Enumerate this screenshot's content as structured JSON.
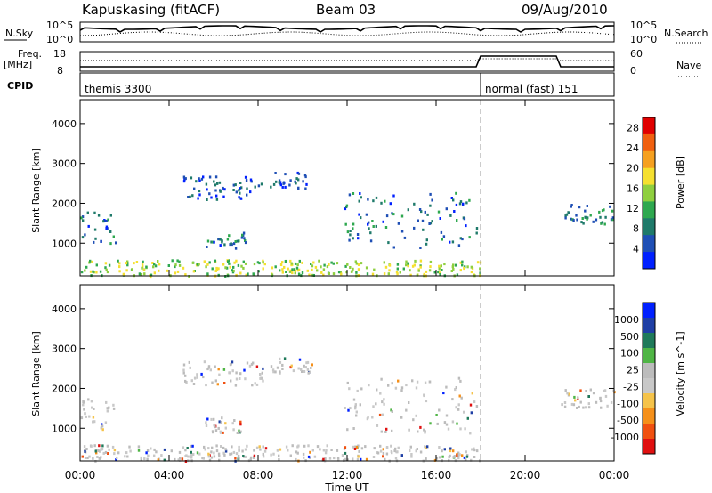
{
  "header": {
    "station": "Kapuskasing (fitACF)",
    "beam": "Beam 03",
    "date": "09/Aug/2010"
  },
  "top_panels": {
    "nsky_label": "N.Sky",
    "nsky_ticks": [
      "10^5",
      "10^0"
    ],
    "nsearch_label": "N.Search",
    "nsearch_ticks": [
      "10^5",
      "10^0"
    ],
    "freq_label": "Freq.",
    "freq_unit": "[MHz]",
    "freq_ticks": [
      "18",
      "8"
    ],
    "nave_label": "Nave",
    "nave_ticks": [
      "60",
      "0"
    ],
    "cpid_label": "CPID",
    "cpid_modes": [
      {
        "name": "themis 3300",
        "start_hour": 0,
        "end_hour": 18
      },
      {
        "name": "normal (fast) 151",
        "start_hour": 18,
        "end_hour": 24
      }
    ]
  },
  "colors": {
    "power_scale": [
      "#0020ff",
      "#1f4fb5",
      "#1f7a6a",
      "#2ea84f",
      "#8fcf3f",
      "#f5e030",
      "#f5a020",
      "#f06010",
      "#e00000"
    ],
    "velocity_scale": [
      "#e01010",
      "#f05010",
      "#f5901a",
      "#f5c34a",
      "#c8c8c8",
      "#bcbcbc",
      "#4fb545",
      "#1f7a5a",
      "#1f3fa5",
      "#0020ff"
    ],
    "ground_scatter": "#bdbdbd",
    "dashed_marker": "#999999"
  },
  "chart_data": [
    {
      "type": "heatmap",
      "title": "",
      "xlabel": "Time UT",
      "ylabel": "Slant Range [km]",
      "xlim_hours": [
        0,
        24
      ],
      "ylim_km": [
        180,
        4600
      ],
      "x_ticks": [
        "00:00",
        "04:00",
        "08:00",
        "12:00",
        "16:00",
        "20:00",
        "00:00"
      ],
      "y_ticks": [
        "1000",
        "2000",
        "3000",
        "4000"
      ],
      "colorbar_label": "Power [dB]",
      "colorbar_ticks": [
        "4",
        "8",
        "12",
        "16",
        "20",
        "24",
        "28"
      ],
      "colorbar_range": [
        0,
        30
      ],
      "mode_change_hour": 18,
      "features": [
        {
          "t0": 0.0,
          "t1": 1.6,
          "r0": 1000,
          "r1": 1800,
          "value": 8
        },
        {
          "t0": 4.6,
          "t1": 8.2,
          "r0": 2100,
          "r1": 2700,
          "value": 6
        },
        {
          "t0": 8.5,
          "t1": 10.4,
          "r0": 2400,
          "r1": 2800,
          "value": 6
        },
        {
          "t0": 5.6,
          "t1": 7.4,
          "r0": 900,
          "r1": 1300,
          "value": 8
        },
        {
          "t0": 11.8,
          "t1": 17.8,
          "r0": 900,
          "r1": 2300,
          "value": 8
        },
        {
          "t0": 21.6,
          "t1": 24.0,
          "r0": 1500,
          "r1": 2000,
          "value": 10
        },
        {
          "t0": 0.0,
          "t1": 18.0,
          "r0": 200,
          "r1": 600,
          "value": 18
        }
      ]
    },
    {
      "type": "heatmap",
      "title": "",
      "xlabel": "Time UT",
      "ylabel": "Slant Range [km]",
      "xlim_hours": [
        0,
        24
      ],
      "ylim_km": [
        180,
        4600
      ],
      "x_ticks": [
        "00:00",
        "04:00",
        "08:00",
        "12:00",
        "16:00",
        "20:00",
        "00:00"
      ],
      "y_ticks": [
        "1000",
        "2000",
        "3000",
        "4000"
      ],
      "colorbar_label": "Velocity [m s^-1]",
      "colorbar_ticks": [
        "1000",
        "500",
        "100",
        "25",
        "-25",
        "-100",
        "-500",
        "-1000"
      ],
      "colorbar_range": [
        -1000,
        1000
      ],
      "mode_change_hour": 18,
      "features": [
        {
          "t0": 0.0,
          "t1": 1.6,
          "r0": 1000,
          "r1": 1800,
          "value": 0
        },
        {
          "t0": 4.6,
          "t1": 8.2,
          "r0": 2100,
          "r1": 2700,
          "value": 0
        },
        {
          "t0": 8.5,
          "t1": 10.4,
          "r0": 2400,
          "r1": 2800,
          "value": 0
        },
        {
          "t0": 5.6,
          "t1": 7.4,
          "r0": 900,
          "r1": 1300,
          "value": 0
        },
        {
          "t0": 11.8,
          "t1": 17.8,
          "r0": 900,
          "r1": 2300,
          "value": 0
        },
        {
          "t0": 21.6,
          "t1": 24.0,
          "r0": 1500,
          "r1": 2000,
          "value": 0
        },
        {
          "t0": 0.0,
          "t1": 18.0,
          "r0": 200,
          "r1": 600,
          "value": -100
        }
      ]
    }
  ]
}
